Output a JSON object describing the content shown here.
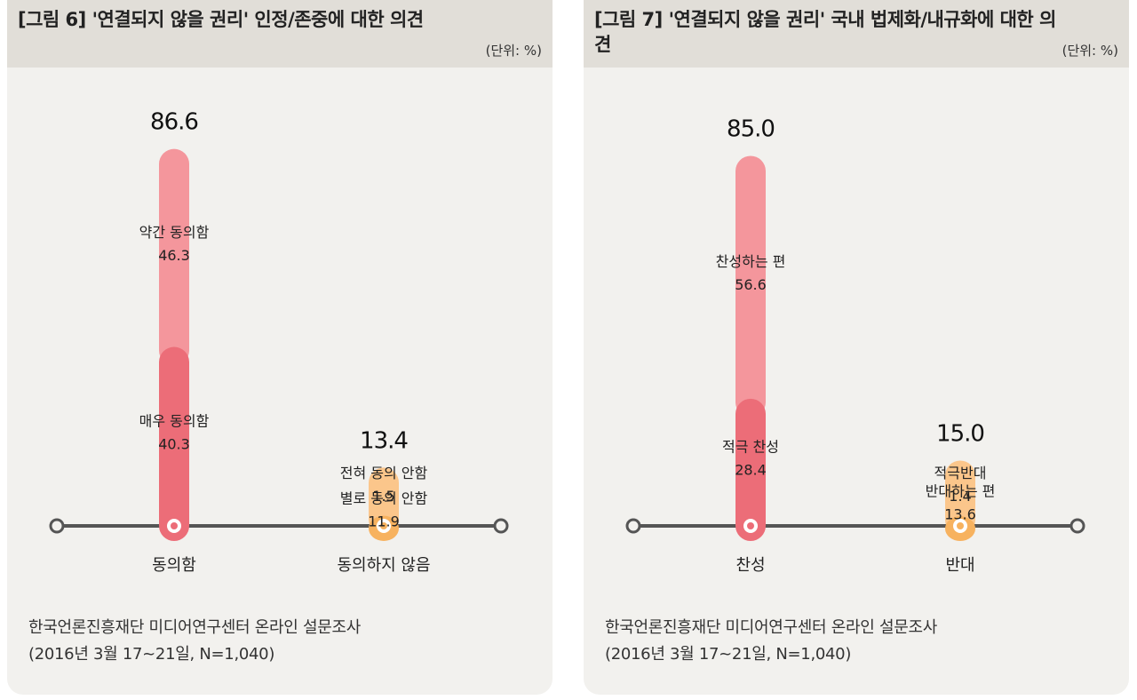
{
  "colors": {
    "agree_upper": "#f4969c",
    "agree_lower": "#ec6d78",
    "disagree_upper": "#fbc68b",
    "disagree_lower": "#f7b25f",
    "axis": "#555555",
    "panel_bg": "#f2f1ee",
    "header_bg": "#e1ded8"
  },
  "unit_label": "(단위: %)",
  "source": {
    "line1": "한국언론진흥재단 미디어연구센터 온라인 설문조사",
    "line2": "(2016년 3월 17~21일, N=1,040)"
  },
  "chart_data": [
    {
      "type": "bar",
      "stacked": true,
      "title_prefix": "[그림 6]",
      "title": "'연결되지 않을 권리' 인정/존중에 대한 의견",
      "unit": "%",
      "ylim": [
        0,
        100
      ],
      "categories": [
        "동의함",
        "동의하지 않음"
      ],
      "totals": [
        "86.6",
        "13.4"
      ],
      "segments": [
        [
          {
            "label": "매우 동의함",
            "value": 40.3,
            "display": "40.3",
            "color_key": "agree_lower"
          },
          {
            "label": "약간 동의함",
            "value": 46.3,
            "display": "46.3",
            "color_key": "agree_upper"
          }
        ],
        [
          {
            "label": "전혀 동의 안함",
            "value": 1.5,
            "display": "1.5",
            "color_key": "disagree_lower"
          },
          {
            "label": "별로 동의 안함",
            "value": 11.9,
            "display": "11.9",
            "color_key": "disagree_upper"
          }
        ]
      ]
    },
    {
      "type": "bar",
      "stacked": true,
      "title_prefix": "[그림 7]",
      "title": "'연결되지 않을 권리' 국내 법제화/내규화에 대한 의견",
      "unit": "%",
      "ylim": [
        0,
        100
      ],
      "categories": [
        "찬성",
        "반대"
      ],
      "totals": [
        "85.0",
        "15.0"
      ],
      "segments": [
        [
          {
            "label": "적극 찬성",
            "value": 28.4,
            "display": "28.4",
            "color_key": "agree_lower"
          },
          {
            "label": "찬성하는 편",
            "value": 56.6,
            "display": "56.6",
            "color_key": "agree_upper"
          }
        ],
        [
          {
            "label": "적극반대",
            "value": 1.4,
            "display": "1.4",
            "color_key": "disagree_lower"
          },
          {
            "label": "반대하는 편",
            "value": 13.6,
            "display": "13.6",
            "color_key": "disagree_upper"
          }
        ]
      ]
    }
  ]
}
